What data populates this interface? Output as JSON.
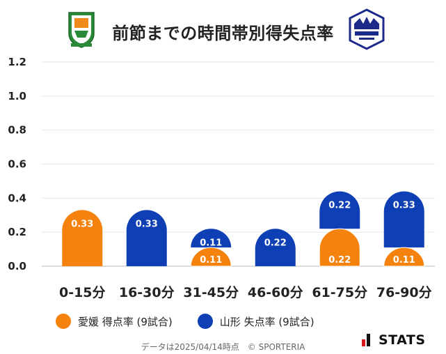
{
  "header": {
    "title": "前節までの時間帯別得失点率"
  },
  "chart_data": {
    "type": "bar",
    "title": "前節までの時間帯別得失点率",
    "categories": [
      "0-15分",
      "16-30分",
      "31-45分",
      "46-60分",
      "61-75分",
      "76-90分"
    ],
    "series": [
      {
        "name": "愛媛 得点率 (9試合)",
        "color": "#F5820D",
        "values": [
          0.33,
          0,
          0.11,
          0,
          0.22,
          0.11
        ]
      },
      {
        "name": "山形 失点率 (9試合)",
        "color": "#0E3FB4",
        "values": [
          0,
          0.33,
          0.11,
          0.22,
          0.22,
          0.33
        ]
      }
    ],
    "stacked": true,
    "y_ticks": [
      "0.0",
      "0.2",
      "0.4",
      "0.6",
      "0.8",
      "1.0",
      "1.2"
    ],
    "ylim": [
      0,
      1.2
    ],
    "grid": true,
    "legend_position": "bottom"
  },
  "legend": {
    "items": [
      {
        "label": "愛媛 得点率 (9試合)",
        "color": "#F5820D"
      },
      {
        "label": "山形 失点率 (9試合)",
        "color": "#0E3FB4"
      }
    ]
  },
  "footer": {
    "text": "データは2025/04/14時点　© SPORTERIA"
  },
  "brand": {
    "stats": "STATS",
    "left_logo": "ehime-fc-crest-icon",
    "right_logo": "montedio-yamagata-crest-icon"
  }
}
